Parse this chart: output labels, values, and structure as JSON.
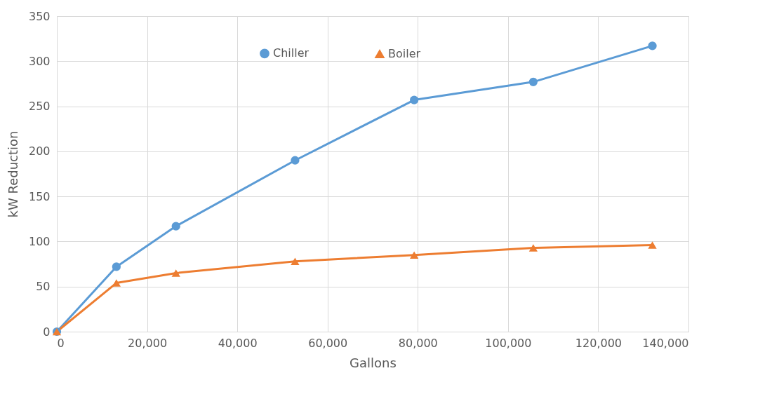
{
  "chart_data": {
    "type": "line",
    "xlabel": "Gallons",
    "ylabel": "kW Reduction",
    "x": [
      0,
      13200,
      26400,
      52800,
      79200,
      105600,
      132000
    ],
    "series": [
      {
        "name": "Chiller",
        "color": "#5b9bd5",
        "marker": "circle",
        "values": [
          0,
          72,
          117,
          190,
          257,
          277,
          317
        ]
      },
      {
        "name": "Boiler",
        "color": "#ed7d31",
        "marker": "triangle",
        "values": [
          0,
          54,
          65,
          78,
          85,
          93,
          96
        ]
      }
    ],
    "xlim": [
      0,
      140000
    ],
    "xticks": [
      {
        "value": 0,
        "label": "0"
      },
      {
        "value": 20000,
        "label": "20,000"
      },
      {
        "value": 40000,
        "label": "40,000"
      },
      {
        "value": 60000,
        "label": "60,000"
      },
      {
        "value": 80000,
        "label": "80,000"
      },
      {
        "value": 100000,
        "label": "100,000"
      },
      {
        "value": 120000,
        "label": "120,000"
      },
      {
        "value": 140000,
        "label": "140,000"
      }
    ],
    "ylim": [
      0,
      350
    ],
    "yticks": [
      0,
      50,
      100,
      150,
      200,
      250,
      300,
      350
    ],
    "grid": true,
    "legend": "top",
    "line_style": "solid"
  }
}
